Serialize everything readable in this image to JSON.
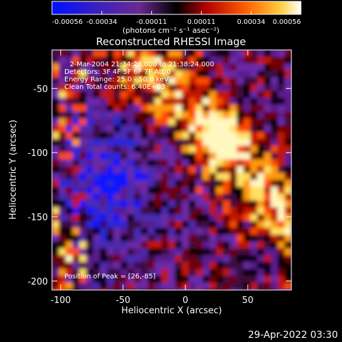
{
  "chart_data": {
    "type": "heatmap",
    "title": "Reconstructed RHESSI Image",
    "xlabel": "Heliocentric X (arcsec)",
    "ylabel": "Heliocentric Y (arcsec)",
    "xlim": [
      -107,
      85
    ],
    "ylim": [
      -207,
      -20
    ],
    "xticks": [
      -100,
      -50,
      0,
      50
    ],
    "yticks": [
      -50,
      -100,
      -150,
      -200
    ],
    "colorbar": {
      "ticks": [
        "-0.00056",
        "-0.00034",
        "-0.00011",
        "0.00011",
        "0.00034",
        "0.00056"
      ],
      "range": [
        -0.00056,
        0.00056
      ],
      "unit_label": "(photons cm⁻² s⁻¹ asec⁻²)"
    },
    "annotations": {
      "line1": "2-Mar-2004 21:34:28.000 to 21:38:24.000",
      "line2": "Detectors: 3F 4F 5F 6F 7F  Att 0",
      "line3": "Energy Range: 25.0 - 50.0 keV",
      "line4": "Clean      Total counts: 6.40E+03",
      "peak": "Position of Peak = [26,-85]"
    },
    "peak_position": [
      26,
      -85
    ],
    "colormap": [
      "#0000ff",
      "#4b2aa8",
      "#6a2ab4",
      "#000000",
      "#d01a00",
      "#ff7a00",
      "#ffe060",
      "#ffffff"
    ],
    "grid": false
  },
  "footer": {
    "timestamp": "29-Apr-2022 03:30"
  }
}
